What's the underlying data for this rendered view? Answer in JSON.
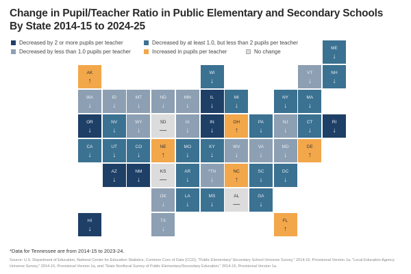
{
  "title_line1": "Change in Pupil/Teacher Ratio in Public Elementary and Secondary Schools",
  "title_line2": "By State 2014-15 to 2024-25",
  "legend": [
    {
      "key": "dark",
      "label": "Decreased by 2 or more pupils per teacher",
      "color": "#1e3f66"
    },
    {
      "key": "mid",
      "label": "Decreased by at least 1.0, but less than 2 pupils per teacher",
      "color": "#3b7191"
    },
    {
      "key": "light",
      "label": "Decreased by less than 1.0 pupils per teacher",
      "color": "#8d9fb2"
    },
    {
      "key": "inc",
      "label": "Increased in pupils per teacher",
      "color": "#f2a74b"
    },
    {
      "key": "none",
      "label": "No change",
      "color": "#dcdcdc"
    }
  ],
  "arrows": {
    "dark": "↓",
    "mid": "↓",
    "light": "↓",
    "inc": "↑",
    "none": "—"
  },
  "states": [
    {
      "abbr": "ME",
      "cat": "mid",
      "row": 0,
      "col": 10
    },
    {
      "abbr": "AK",
      "cat": "inc",
      "row": 1,
      "col": 0
    },
    {
      "abbr": "WI",
      "cat": "mid",
      "row": 1,
      "col": 5
    },
    {
      "abbr": "VT",
      "cat": "light",
      "row": 1,
      "col": 9
    },
    {
      "abbr": "NH",
      "cat": "mid",
      "row": 1,
      "col": 10
    },
    {
      "abbr": "WA",
      "cat": "light",
      "row": 2,
      "col": 0
    },
    {
      "abbr": "ID",
      "cat": "light",
      "row": 2,
      "col": 1
    },
    {
      "abbr": "MT",
      "cat": "light",
      "row": 2,
      "col": 2
    },
    {
      "abbr": "ND",
      "cat": "light",
      "row": 2,
      "col": 3
    },
    {
      "abbr": "MN",
      "cat": "light",
      "row": 2,
      "col": 4
    },
    {
      "abbr": "IL",
      "cat": "dark",
      "row": 2,
      "col": 5
    },
    {
      "abbr": "MI",
      "cat": "mid",
      "row": 2,
      "col": 6
    },
    {
      "abbr": "NY",
      "cat": "mid",
      "row": 2,
      "col": 8
    },
    {
      "abbr": "MA",
      "cat": "mid",
      "row": 2,
      "col": 9
    },
    {
      "abbr": "OR",
      "cat": "dark",
      "row": 3,
      "col": 0
    },
    {
      "abbr": "NV",
      "cat": "mid",
      "row": 3,
      "col": 1
    },
    {
      "abbr": "WY",
      "cat": "light",
      "row": 3,
      "col": 2
    },
    {
      "abbr": "SD",
      "cat": "none",
      "row": 3,
      "col": 3
    },
    {
      "abbr": "IA",
      "cat": "light",
      "row": 3,
      "col": 4
    },
    {
      "abbr": "IN",
      "cat": "dark",
      "row": 3,
      "col": 5
    },
    {
      "abbr": "OH",
      "cat": "inc",
      "row": 3,
      "col": 6
    },
    {
      "abbr": "PA",
      "cat": "mid",
      "row": 3,
      "col": 7
    },
    {
      "abbr": "NJ",
      "cat": "light",
      "row": 3,
      "col": 8
    },
    {
      "abbr": "CT",
      "cat": "mid",
      "row": 3,
      "col": 9
    },
    {
      "abbr": "RI",
      "cat": "dark",
      "row": 3,
      "col": 10
    },
    {
      "abbr": "CA",
      "cat": "mid",
      "row": 4,
      "col": 0
    },
    {
      "abbr": "UT",
      "cat": "mid",
      "row": 4,
      "col": 1
    },
    {
      "abbr": "CO",
      "cat": "mid",
      "row": 4,
      "col": 2
    },
    {
      "abbr": "NE",
      "cat": "inc",
      "row": 4,
      "col": 3
    },
    {
      "abbr": "MO",
      "cat": "mid",
      "row": 4,
      "col": 4
    },
    {
      "abbr": "KY",
      "cat": "mid",
      "row": 4,
      "col": 5
    },
    {
      "abbr": "WV",
      "cat": "light",
      "row": 4,
      "col": 6
    },
    {
      "abbr": "VA",
      "cat": "light",
      "row": 4,
      "col": 7
    },
    {
      "abbr": "MD",
      "cat": "light",
      "row": 4,
      "col": 8
    },
    {
      "abbr": "DE",
      "cat": "inc",
      "row": 4,
      "col": 9
    },
    {
      "abbr": "AZ",
      "cat": "dark",
      "row": 5,
      "col": 1
    },
    {
      "abbr": "NM",
      "cat": "dark",
      "row": 5,
      "col": 2
    },
    {
      "abbr": "KS",
      "cat": "none",
      "row": 5,
      "col": 3
    },
    {
      "abbr": "AR",
      "cat": "mid",
      "row": 5,
      "col": 4
    },
    {
      "abbr": "*TN",
      "cat": "light",
      "row": 5,
      "col": 5
    },
    {
      "abbr": "NC",
      "cat": "inc",
      "row": 5,
      "col": 6
    },
    {
      "abbr": "SC",
      "cat": "mid",
      "row": 5,
      "col": 7
    },
    {
      "abbr": "DC",
      "cat": "mid",
      "row": 5,
      "col": 8
    },
    {
      "abbr": "OK",
      "cat": "light",
      "row": 6,
      "col": 3
    },
    {
      "abbr": "LA",
      "cat": "mid",
      "row": 6,
      "col": 4
    },
    {
      "abbr": "MS",
      "cat": "mid",
      "row": 6,
      "col": 5
    },
    {
      "abbr": "AL",
      "cat": "none",
      "row": 6,
      "col": 6
    },
    {
      "abbr": "GA",
      "cat": "mid",
      "row": 6,
      "col": 7
    },
    {
      "abbr": "HI",
      "cat": "dark",
      "row": 7,
      "col": 0
    },
    {
      "abbr": "TX",
      "cat": "light",
      "row": 7,
      "col": 3
    },
    {
      "abbr": "FL",
      "cat": "inc",
      "row": 7,
      "col": 8
    }
  ],
  "footnote": "*Data for Tennessee are from 2014-15 to 2023-24.",
  "source": "Source: U.S. Department of Education, National Center for Education Statistics, Common Core of Data (CCD), \"Public Elementary/ Secondary School Universe Survey,\" 2014-15, Provisional Version 1a, \"Local Education Agency Universe Survey,\" 2014-15, Provisional Version 1a, and \"State Nonfiscal Survey of Public Elementary/Secondary Education,\" 2014-15, Provisional Version 1a."
}
